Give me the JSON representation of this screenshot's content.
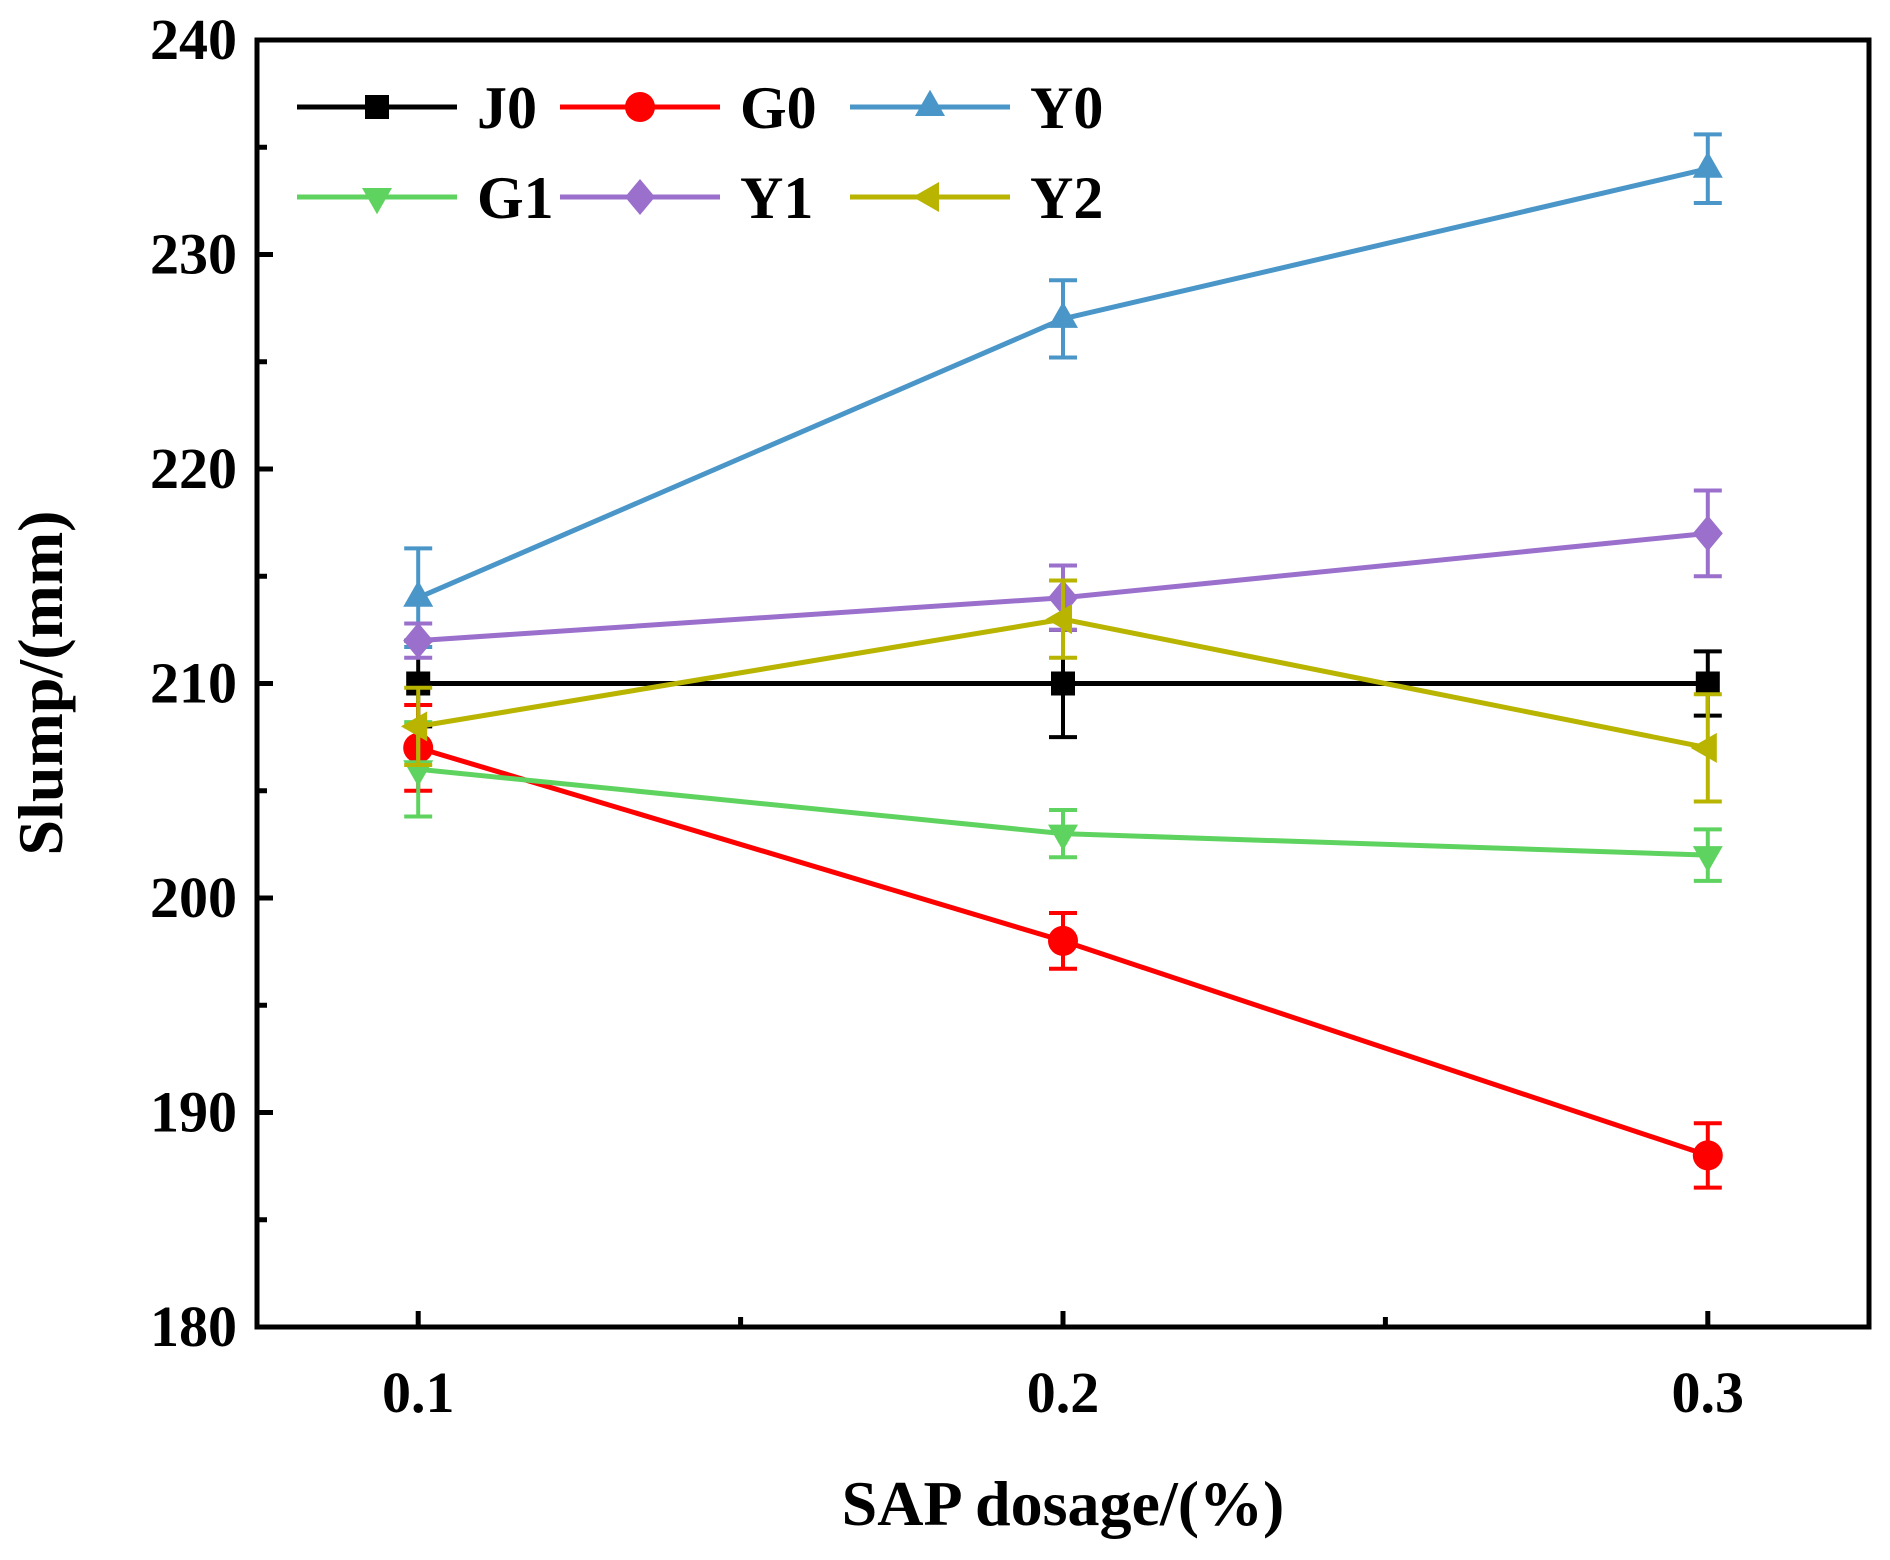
{
  "chart_data": {
    "type": "line",
    "title": "",
    "xlabel": "SAP dosage/(%)",
    "ylabel": "Slump/(mm)",
    "x": [
      0.1,
      0.2,
      0.3
    ],
    "x_tick_labels": [
      "0.1",
      "0.2",
      "0.3"
    ],
    "xlim": [
      0.075,
      0.325
    ],
    "ylim": [
      180,
      240
    ],
    "y_ticks": [
      180,
      190,
      200,
      210,
      220,
      230,
      240
    ],
    "y_tick_labels": [
      "180",
      "190",
      "200",
      "210",
      "220",
      "230",
      "240"
    ],
    "grid": false,
    "legend_position": "top-left",
    "series": [
      {
        "name": "J0",
        "values": [
          210,
          210,
          210
        ],
        "errors": [
          2,
          2.5,
          1.5
        ],
        "color": "#000000",
        "marker": "square"
      },
      {
        "name": "G0",
        "values": [
          207,
          198,
          188
        ],
        "errors": [
          2,
          1.3,
          1.5
        ],
        "color": "#ff0000",
        "marker": "circle"
      },
      {
        "name": "Y0",
        "values": [
          214,
          227,
          234
        ],
        "errors": [
          2.3,
          1.8,
          1.6
        ],
        "color": "#4a96c8",
        "marker": "triangle-up"
      },
      {
        "name": "G1",
        "values": [
          206,
          203,
          202
        ],
        "errors": [
          2.2,
          1.1,
          1.2
        ],
        "color": "#5fd35f",
        "marker": "triangle-down"
      },
      {
        "name": "Y1",
        "values": [
          212,
          214,
          217
        ],
        "errors": [
          0.8,
          1.5,
          2
        ],
        "color": "#9b6fcc",
        "marker": "diamond"
      },
      {
        "name": "Y2",
        "values": [
          208,
          213,
          207
        ],
        "errors": [
          1.8,
          1.8,
          2.5
        ],
        "color": "#b8b400",
        "marker": "triangle-left"
      }
    ]
  }
}
